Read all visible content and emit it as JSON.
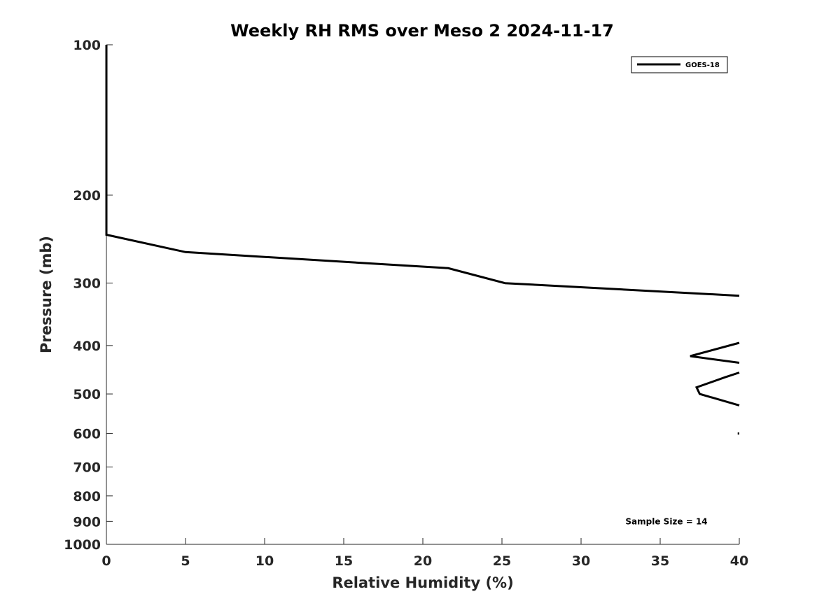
{
  "chart_data": {
    "type": "line",
    "title": "Weekly RH RMS over Meso 2 2024-11-17",
    "xlabel": "Relative Humidity (%)",
    "ylabel": "Pressure (mb)",
    "xlim": [
      0,
      40
    ],
    "ylim": [
      100,
      1000
    ],
    "yscale": "log",
    "y_reversed": true,
    "grid": false,
    "legend_position": "top-right",
    "x_ticks": [
      0,
      5,
      10,
      15,
      20,
      25,
      30,
      35,
      40
    ],
    "x_tick_labels": [
      "0",
      "5",
      "10",
      "15",
      "20",
      "25",
      "30",
      "35",
      "40"
    ],
    "y_ticks": [
      100,
      200,
      300,
      400,
      500,
      600,
      700,
      800,
      900,
      1000
    ],
    "y_tick_labels": [
      "100",
      "200",
      "300",
      "400",
      "500",
      "600",
      "700",
      "800",
      "900",
      "1000"
    ],
    "series": [
      {
        "name": "GOES-18",
        "color": "#000000",
        "segments": [
          [
            {
              "x": 0,
              "y": 100
            },
            {
              "x": 0,
              "y": 150
            },
            {
              "x": 0,
              "y": 200
            },
            {
              "x": 0,
              "y": 240
            },
            {
              "x": 5,
              "y": 260
            },
            {
              "x": 21.6,
              "y": 280
            },
            {
              "x": 25.2,
              "y": 300
            },
            {
              "x": 40,
              "y": 318
            }
          ],
          [
            {
              "x": 40,
              "y": 395
            },
            {
              "x": 36.9,
              "y": 420
            },
            {
              "x": 40,
              "y": 433
            }
          ],
          [
            {
              "x": 40,
              "y": 453
            },
            {
              "x": 39.1,
              "y": 463
            },
            {
              "x": 37.3,
              "y": 485
            },
            {
              "x": 37.5,
              "y": 500
            },
            {
              "x": 40,
              "y": 527
            }
          ],
          [
            {
              "x": 39.9,
              "y": 600
            },
            {
              "x": 40,
              "y": 600
            }
          ]
        ]
      }
    ],
    "annotations": [
      {
        "text": "Sample Size = 14",
        "x": 35.4,
        "y": 900
      }
    ]
  }
}
